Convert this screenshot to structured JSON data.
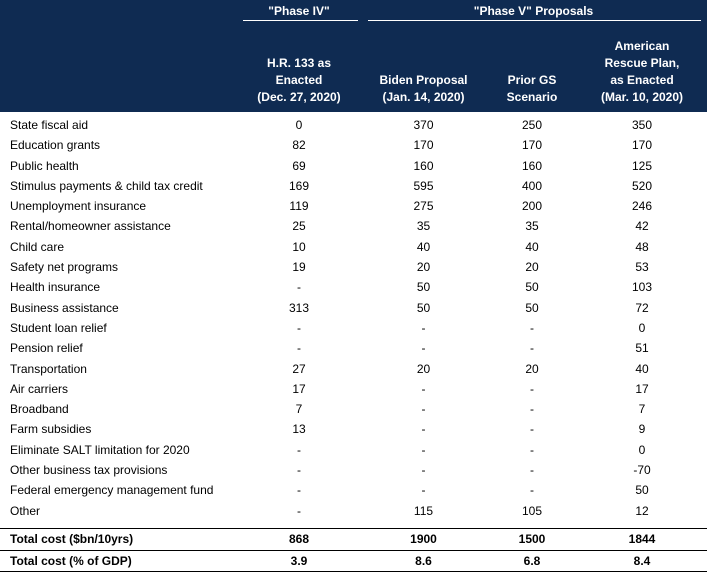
{
  "header": {
    "group_phase4": "\"Phase IV\"",
    "group_phase5": "\"Phase V\" Proposals",
    "columns": [
      "H.R. 133 as\nEnacted\n(Dec. 27, 2020)",
      "Biden Proposal\n(Jan. 14, 2020)",
      "Prior GS\nScenario",
      "American\nRescue Plan,\nas Enacted\n(Mar. 10, 2020)"
    ]
  },
  "rows": [
    {
      "label": "State fiscal aid",
      "values": [
        "0",
        "370",
        "250",
        "350"
      ]
    },
    {
      "label": "Education grants",
      "values": [
        "82",
        "170",
        "170",
        "170"
      ]
    },
    {
      "label": "Public health",
      "values": [
        "69",
        "160",
        "160",
        "125"
      ]
    },
    {
      "label": "Stimulus payments & child tax credit",
      "values": [
        "169",
        "595",
        "400",
        "520"
      ]
    },
    {
      "label": "Unemployment insurance",
      "values": [
        "119",
        "275",
        "200",
        "246"
      ]
    },
    {
      "label": "Rental/homeowner assistance",
      "values": [
        "25",
        "35",
        "35",
        "42"
      ]
    },
    {
      "label": "Child care",
      "values": [
        "10",
        "40",
        "40",
        "48"
      ]
    },
    {
      "label": "Safety net programs",
      "values": [
        "19",
        "20",
        "20",
        "53"
      ]
    },
    {
      "label": "Health insurance",
      "values": [
        "-",
        "50",
        "50",
        "103"
      ]
    },
    {
      "label": "Business assistance",
      "values": [
        "313",
        "50",
        "50",
        "72"
      ]
    },
    {
      "label": "Student loan relief",
      "values": [
        "-",
        "-",
        "-",
        "0"
      ]
    },
    {
      "label": "Pension relief",
      "values": [
        "-",
        "-",
        "-",
        "51"
      ]
    },
    {
      "label": "Transportation",
      "values": [
        "27",
        "20",
        "20",
        "40"
      ]
    },
    {
      "label": "Air carriers",
      "values": [
        "17",
        "-",
        "-",
        "17"
      ]
    },
    {
      "label": "Broadband",
      "values": [
        "7",
        "-",
        "-",
        "7"
      ]
    },
    {
      "label": "Farm subsidies",
      "values": [
        "13",
        "-",
        "-",
        "9"
      ]
    },
    {
      "label": "Eliminate SALT limitation for 2020",
      "values": [
        "-",
        "-",
        "-",
        "0"
      ]
    },
    {
      "label": "Other business tax provisions",
      "values": [
        "-",
        "-",
        "-",
        "-70"
      ]
    },
    {
      "label": "Federal emergency management fund",
      "values": [
        "-",
        "-",
        "-",
        "50"
      ]
    },
    {
      "label": "Other",
      "values": [
        "-",
        "115",
        "105",
        "12"
      ]
    }
  ],
  "totals": [
    {
      "label": "Total cost ($bn/10yrs)",
      "values": [
        "868",
        "1900",
        "1500",
        "1844"
      ]
    },
    {
      "label": "Total cost (% of GDP)",
      "values": [
        "3.9",
        "8.6",
        "6.8",
        "8.4"
      ]
    }
  ]
}
